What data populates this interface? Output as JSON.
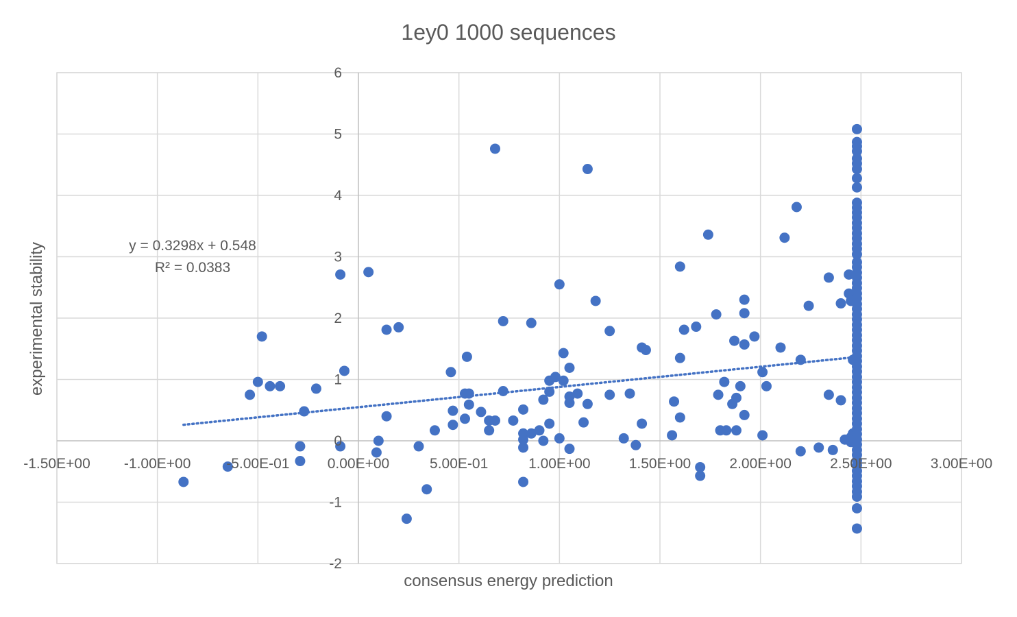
{
  "chart_data": {
    "type": "scatter",
    "title": "1ey0 1000 sequences",
    "xlabel": "consensus energy prediction",
    "ylabel": "experimental stability",
    "xlim": [
      -1.5,
      3.0
    ],
    "ylim": [
      -2,
      6
    ],
    "x_ticks": [
      -1.5,
      -1.0,
      -0.5,
      0.0,
      0.5,
      1.0,
      1.5,
      2.0,
      2.5,
      3.0
    ],
    "x_tick_labels": [
      "-1.50E+00",
      "-1.00E+00",
      "-5.00E-01",
      "0.00E+00",
      "5.00E-01",
      "1.00E+00",
      "1.50E+00",
      "2.00E+00",
      "2.50E+00",
      "3.00E+00"
    ],
    "y_ticks": [
      -2,
      -1,
      0,
      1,
      2,
      3,
      4,
      5,
      6
    ],
    "y_tick_labels": [
      "-2",
      "-1",
      "0",
      "1",
      "2",
      "3",
      "4",
      "5",
      "6"
    ],
    "grid": true,
    "marker_color": "#4472C4",
    "trendline": {
      "type": "linear",
      "slope": 0.3298,
      "intercept": 0.548,
      "x_range": [
        -0.87,
        2.45
      ],
      "equation_text": "y = 0.3298x + 0.548",
      "r2_text": "R² = 0.0383",
      "color": "#4472C4"
    },
    "points": [
      [
        -0.87,
        -0.67
      ],
      [
        -0.65,
        -0.42
      ],
      [
        -0.54,
        0.75
      ],
      [
        -0.5,
        0.96
      ],
      [
        -0.48,
        1.7
      ],
      [
        -0.44,
        0.89
      ],
      [
        -0.39,
        0.89
      ],
      [
        -0.29,
        -0.09
      ],
      [
        -0.29,
        -0.33
      ],
      [
        -0.27,
        0.48
      ],
      [
        -0.21,
        0.85
      ],
      [
        -0.09,
        2.71
      ],
      [
        -0.09,
        -0.09
      ],
      [
        -0.07,
        1.14
      ],
      [
        0.05,
        2.75
      ],
      [
        0.09,
        -0.19
      ],
      [
        0.1,
        0.0
      ],
      [
        0.14,
        0.4
      ],
      [
        0.14,
        1.81
      ],
      [
        0.2,
        1.85
      ],
      [
        0.24,
        -1.27
      ],
      [
        0.3,
        -0.09
      ],
      [
        0.34,
        -0.79
      ],
      [
        0.38,
        0.17
      ],
      [
        0.46,
        1.12
      ],
      [
        0.47,
        0.49
      ],
      [
        0.47,
        0.26
      ],
      [
        0.53,
        0.36
      ],
      [
        0.53,
        0.77
      ],
      [
        0.54,
        1.37
      ],
      [
        0.55,
        0.59
      ],
      [
        0.55,
        0.77
      ],
      [
        0.61,
        0.47
      ],
      [
        0.65,
        0.33
      ],
      [
        0.65,
        0.17
      ],
      [
        0.68,
        4.76
      ],
      [
        0.68,
        0.33
      ],
      [
        0.72,
        1.95
      ],
      [
        0.72,
        0.81
      ],
      [
        0.77,
        0.33
      ],
      [
        0.82,
        0.51
      ],
      [
        0.82,
        -0.11
      ],
      [
        0.82,
        0.12
      ],
      [
        0.82,
        0.02
      ],
      [
        0.82,
        -0.67
      ],
      [
        0.86,
        1.92
      ],
      [
        0.86,
        0.12
      ],
      [
        0.9,
        0.17
      ],
      [
        0.92,
        0.67
      ],
      [
        0.92,
        0.0
      ],
      [
        0.95,
        0.8
      ],
      [
        0.95,
        0.28
      ],
      [
        0.95,
        0.98
      ],
      [
        0.98,
        1.04
      ],
      [
        1.0,
        2.55
      ],
      [
        1.0,
        0.04
      ],
      [
        1.02,
        1.43
      ],
      [
        1.02,
        0.98
      ],
      [
        1.05,
        1.19
      ],
      [
        1.05,
        0.72
      ],
      [
        1.05,
        0.62
      ],
      [
        1.05,
        -0.13
      ],
      [
        1.09,
        0.77
      ],
      [
        1.12,
        0.3
      ],
      [
        1.14,
        4.43
      ],
      [
        1.14,
        0.6
      ],
      [
        1.18,
        2.28
      ],
      [
        1.25,
        1.79
      ],
      [
        1.25,
        0.75
      ],
      [
        1.32,
        0.04
      ],
      [
        1.35,
        0.77
      ],
      [
        1.38,
        -0.07
      ],
      [
        1.41,
        1.52
      ],
      [
        1.41,
        0.28
      ],
      [
        1.43,
        1.48
      ],
      [
        1.56,
        0.09
      ],
      [
        1.57,
        0.64
      ],
      [
        1.6,
        2.84
      ],
      [
        1.6,
        1.35
      ],
      [
        1.6,
        0.38
      ],
      [
        1.62,
        1.81
      ],
      [
        1.68,
        1.86
      ],
      [
        1.7,
        -0.43
      ],
      [
        1.7,
        -0.57
      ],
      [
        1.74,
        3.36
      ],
      [
        1.78,
        2.06
      ],
      [
        1.79,
        0.75
      ],
      [
        1.8,
        0.17
      ],
      [
        1.82,
        0.96
      ],
      [
        1.83,
        0.17
      ],
      [
        1.86,
        0.6
      ],
      [
        1.87,
        1.63
      ],
      [
        1.88,
        0.17
      ],
      [
        1.88,
        0.7
      ],
      [
        1.9,
        0.89
      ],
      [
        1.92,
        2.3
      ],
      [
        1.92,
        2.08
      ],
      [
        1.92,
        1.57
      ],
      [
        1.92,
        0.42
      ],
      [
        1.97,
        1.7
      ],
      [
        2.01,
        0.09
      ],
      [
        2.01,
        1.12
      ],
      [
        2.03,
        0.89
      ],
      [
        2.1,
        1.52
      ],
      [
        2.12,
        3.31
      ],
      [
        2.18,
        3.81
      ],
      [
        2.2,
        1.32
      ],
      [
        2.2,
        -0.17
      ],
      [
        2.24,
        2.2
      ],
      [
        2.29,
        -0.11
      ],
      [
        2.34,
        2.66
      ],
      [
        2.34,
        0.75
      ],
      [
        2.36,
        -0.15
      ],
      [
        2.4,
        2.24
      ],
      [
        2.4,
        0.66
      ],
      [
        2.42,
        0.02
      ],
      [
        2.44,
        2.71
      ],
      [
        2.44,
        2.4
      ],
      [
        2.45,
        2.28
      ],
      [
        2.45,
        0.06
      ],
      [
        2.45,
        -0.02
      ],
      [
        2.46,
        0.12
      ],
      [
        2.46,
        1.32
      ],
      [
        2.48,
        5.08
      ],
      [
        2.48,
        4.87
      ],
      [
        2.48,
        4.8
      ],
      [
        2.48,
        4.72
      ],
      [
        2.48,
        4.6
      ],
      [
        2.48,
        4.52
      ],
      [
        2.48,
        4.43
      ],
      [
        2.48,
        4.28
      ],
      [
        2.48,
        4.13
      ],
      [
        2.48,
        3.88
      ],
      [
        2.48,
        3.8
      ],
      [
        2.48,
        3.72
      ],
      [
        2.48,
        3.64
      ],
      [
        2.48,
        3.55
      ],
      [
        2.48,
        3.47
      ],
      [
        2.48,
        3.38
      ],
      [
        2.48,
        3.3
      ],
      [
        2.48,
        3.21
      ],
      [
        2.48,
        3.13
      ],
      [
        2.48,
        3.04
      ],
      [
        2.48,
        2.91
      ],
      [
        2.48,
        2.83
      ],
      [
        2.48,
        2.74
      ],
      [
        2.48,
        2.66
      ],
      [
        2.48,
        2.57
      ],
      [
        2.48,
        2.49
      ],
      [
        2.48,
        2.4
      ],
      [
        2.48,
        2.32
      ],
      [
        2.48,
        2.23
      ],
      [
        2.48,
        2.15
      ],
      [
        2.48,
        2.06
      ],
      [
        2.48,
        1.98
      ],
      [
        2.48,
        1.89
      ],
      [
        2.48,
        1.81
      ],
      [
        2.48,
        1.72
      ],
      [
        2.48,
        1.64
      ],
      [
        2.48,
        1.55
      ],
      [
        2.48,
        1.47
      ],
      [
        2.48,
        1.38
      ],
      [
        2.48,
        1.3
      ],
      [
        2.48,
        1.21
      ],
      [
        2.48,
        1.13
      ],
      [
        2.48,
        1.04
      ],
      [
        2.48,
        0.96
      ],
      [
        2.48,
        0.87
      ],
      [
        2.48,
        0.79
      ],
      [
        2.48,
        0.7
      ],
      [
        2.48,
        0.62
      ],
      [
        2.48,
        0.53
      ],
      [
        2.48,
        0.45
      ],
      [
        2.48,
        0.36
      ],
      [
        2.48,
        0.28
      ],
      [
        2.48,
        0.19
      ],
      [
        2.48,
        0.11
      ],
      [
        2.48,
        0.02
      ],
      [
        2.48,
        -0.06
      ],
      [
        2.48,
        -0.15
      ],
      [
        2.48,
        -0.23
      ],
      [
        2.48,
        -0.32
      ],
      [
        2.48,
        -0.4
      ],
      [
        2.48,
        -0.49
      ],
      [
        2.48,
        -0.57
      ],
      [
        2.48,
        -0.66
      ],
      [
        2.48,
        -0.74
      ],
      [
        2.48,
        -0.83
      ],
      [
        2.48,
        -0.91
      ],
      [
        2.48,
        -1.1
      ],
      [
        2.48,
        -1.43
      ]
    ]
  }
}
